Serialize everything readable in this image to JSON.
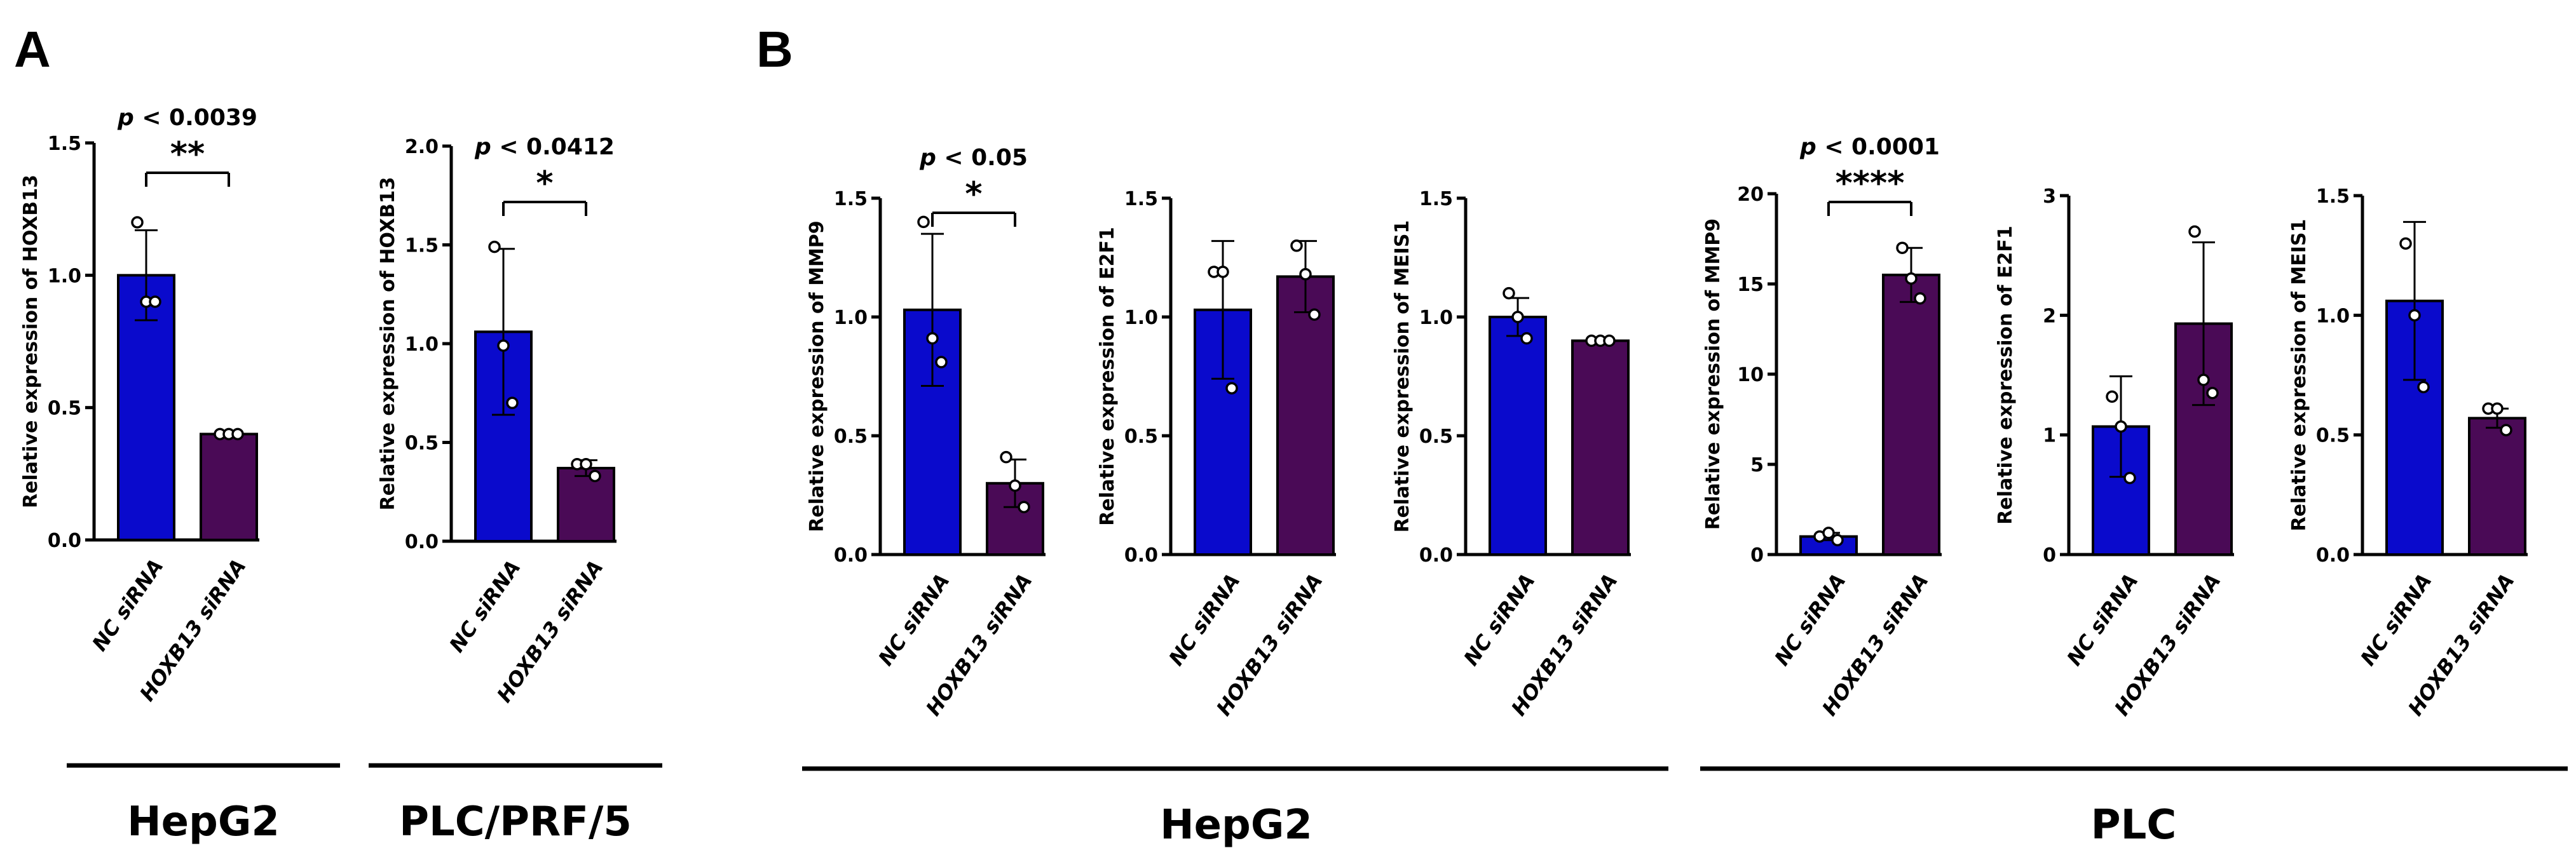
{
  "panels": [
    {
      "letter": "A"
    },
    {
      "letter": "B"
    }
  ],
  "groups": [
    {
      "label": "HepG2"
    },
    {
      "label": "PLC/PRF/5"
    },
    {
      "label": "HepG2"
    },
    {
      "label": "PLC"
    }
  ],
  "colors": {
    "nc": "#0a0acc",
    "hoxb13": "#4a0a56",
    "axis": "#000000"
  },
  "chart_data": [
    {
      "type": "bar",
      "panel": "A",
      "group": "HepG2",
      "ylabel": "Relative expression of HOXB13",
      "categories": [
        "NC siRNA",
        "HOXB13 siRNA"
      ],
      "values": [
        1.0,
        0.4
      ],
      "sd": [
        0.17,
        0.01
      ],
      "points": [
        [
          1.2,
          0.9,
          0.9
        ],
        [
          0.4,
          0.4,
          0.4
        ]
      ],
      "ylim": [
        0,
        1.5
      ],
      "yticks": [
        "0.0",
        "0.5",
        "1.0",
        "1.5"
      ],
      "p_text": "< 0.0039",
      "stars": "**"
    },
    {
      "type": "bar",
      "panel": "A",
      "group": "PLC/PRF/5",
      "ylabel": "Relative expression of HOXB13",
      "categories": [
        "NC siRNA",
        "HOXB13 siRNA"
      ],
      "values": [
        1.06,
        0.37
      ],
      "sd": [
        0.42,
        0.04
      ],
      "points": [
        [
          1.49,
          0.99,
          0.7
        ],
        [
          0.39,
          0.39,
          0.33
        ]
      ],
      "ylim": [
        0,
        2.0
      ],
      "yticks": [
        "0.0",
        "0.5",
        "1.0",
        "1.5",
        "2.0"
      ],
      "p_text": "< 0.0412",
      "stars": "*"
    },
    {
      "type": "bar",
      "panel": "B",
      "group": "HepG2",
      "ylabel": "Relative expression of MMP9",
      "categories": [
        "NC siRNA",
        "HOXB13 siRNA"
      ],
      "values": [
        1.03,
        0.3
      ],
      "sd": [
        0.32,
        0.1
      ],
      "points": [
        [
          1.4,
          0.91,
          0.81
        ],
        [
          0.41,
          0.29,
          0.2
        ]
      ],
      "ylim": [
        0,
        1.5
      ],
      "yticks": [
        "0.0",
        "0.5",
        "1.0",
        "1.5"
      ],
      "p_text": "< 0.05",
      "stars": "*"
    },
    {
      "type": "bar",
      "panel": "B",
      "group": "HepG2",
      "ylabel": "Relative expression of E2F1",
      "categories": [
        "NC siRNA",
        "HOXB13 siRNA"
      ],
      "values": [
        1.03,
        1.17
      ],
      "sd": [
        0.29,
        0.15
      ],
      "points": [
        [
          1.19,
          1.19,
          0.7
        ],
        [
          1.3,
          1.18,
          1.01
        ]
      ],
      "ylim": [
        0,
        1.5
      ],
      "yticks": [
        "0.0",
        "0.5",
        "1.0",
        "1.5"
      ],
      "p_text": "",
      "stars": ""
    },
    {
      "type": "bar",
      "panel": "B",
      "group": "HepG2",
      "ylabel": "Relative expression of MEIS1",
      "categories": [
        "NC siRNA",
        "HOXB13 siRNA"
      ],
      "values": [
        1.0,
        0.9
      ],
      "sd": [
        0.08,
        0.01
      ],
      "points": [
        [
          1.1,
          1.0,
          0.91
        ],
        [
          0.9,
          0.9,
          0.9
        ]
      ],
      "ylim": [
        0,
        1.5
      ],
      "yticks": [
        "0.0",
        "0.5",
        "1.0",
        "1.5"
      ],
      "p_text": "",
      "stars": ""
    },
    {
      "type": "bar",
      "panel": "B",
      "group": "PLC",
      "ylabel": "Relative expression of MMP9",
      "categories": [
        "NC siRNA",
        "HOXB13 siRNA"
      ],
      "values": [
        1.0,
        15.5
      ],
      "sd": [
        0.2,
        1.5
      ],
      "points": [
        [
          1.0,
          1.2,
          0.8
        ],
        [
          17.0,
          15.3,
          14.2
        ]
      ],
      "ylim": [
        0,
        20
      ],
      "yticks": [
        "0",
        "5",
        "10",
        "15",
        "20"
      ],
      "p_text": "< 0.0001",
      "stars": "****"
    },
    {
      "type": "bar",
      "panel": "B",
      "group": "PLC",
      "ylabel": "Relative expression of E2F1",
      "categories": [
        "NC siRNA",
        "HOXB13 siRNA"
      ],
      "values": [
        1.07,
        1.93
      ],
      "sd": [
        0.42,
        0.68
      ],
      "points": [
        [
          1.32,
          1.07,
          0.64
        ],
        [
          2.7,
          1.46,
          1.35
        ]
      ],
      "ylim": [
        0,
        3
      ],
      "yticks": [
        "0",
        "1",
        "2",
        "3"
      ],
      "p_text": "",
      "stars": ""
    },
    {
      "type": "bar",
      "panel": "B",
      "group": "PLC",
      "ylabel": "Relative expression of MEIS1",
      "categories": [
        "NC siRNA",
        "HOXB13 siRNA"
      ],
      "values": [
        1.06,
        0.57
      ],
      "sd": [
        0.33,
        0.04
      ],
      "points": [
        [
          1.3,
          1.0,
          0.7
        ],
        [
          0.61,
          0.61,
          0.52
        ]
      ],
      "ylim": [
        0,
        1.5
      ],
      "yticks": [
        "0.0",
        "0.5",
        "1.0",
        "1.5"
      ],
      "p_text": "",
      "stars": ""
    }
  ]
}
